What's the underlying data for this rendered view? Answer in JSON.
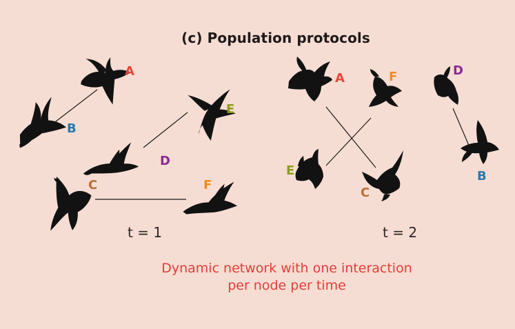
{
  "title": "(c) Population protocols",
  "colors": {
    "background": "#f6ddd3",
    "A": "#e7463b",
    "B": "#2b78ad",
    "C": "#b86f33",
    "D": "#8c2a96",
    "E": "#8a9d17",
    "F": "#f08a22",
    "caption": "#e33d3a"
  },
  "panels": [
    {
      "time_label": "t = 1",
      "pairs": [
        [
          "A",
          "B"
        ],
        [
          "D",
          "E"
        ],
        [
          "C",
          "F"
        ]
      ],
      "nodes": {
        "A": "A",
        "B": "B",
        "C": "C",
        "D": "D",
        "E": "E",
        "F": "F"
      }
    },
    {
      "time_label": "t = 2",
      "pairs": [
        [
          "A",
          "C"
        ],
        [
          "F",
          "E"
        ],
        [
          "D",
          "B"
        ]
      ],
      "nodes": {
        "A": "A",
        "B": "B",
        "C": "C",
        "D": "D",
        "E": "E",
        "F": "F"
      }
    }
  ],
  "caption": {
    "line1": "Dynamic network with one interaction",
    "line2": "per node per time"
  }
}
